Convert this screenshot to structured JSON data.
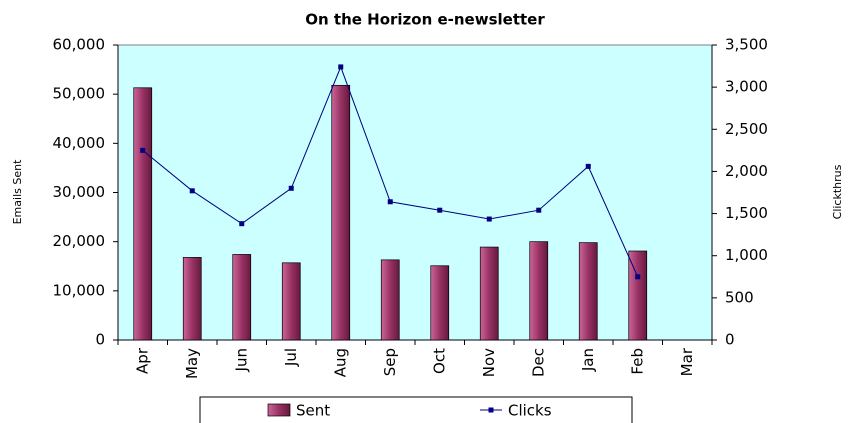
{
  "chart_data": {
    "type": "bar_line",
    "title": "On the Horizon e-newsletter",
    "ylabel": "Emails Sent",
    "y2label": "Clickthrus",
    "categories": [
      "Apr",
      "May",
      "Jun",
      "Jul",
      "Aug",
      "Sep",
      "Oct",
      "Nov",
      "Dec",
      "Jan",
      "Feb",
      "Mar"
    ],
    "series": [
      {
        "name": "Sent",
        "type": "bar",
        "color": "#993366",
        "axis": "y",
        "values": [
          51300,
          16800,
          17400,
          15700,
          51800,
          16300,
          15100,
          18900,
          20000,
          19800,
          18100,
          null
        ]
      },
      {
        "name": "Clicks",
        "type": "line",
        "color": "#000080",
        "axis": "y2",
        "values": [
          2250,
          1770,
          1380,
          1800,
          3240,
          1640,
          1540,
          1435,
          1540,
          2060,
          750,
          null
        ]
      }
    ],
    "ylim": [
      0,
      60000
    ],
    "yticks": [
      0,
      {
        "value": 10000,
        "label": "10,000"
      },
      {
        "value": 20000,
        "label": "20,000"
      },
      {
        "value": 30000,
        "label": "30,000"
      },
      {
        "value": 40000,
        "label": "40,000"
      },
      {
        "value": 50000,
        "label": "50,000"
      },
      {
        "value": 60000,
        "label": "60,000"
      }
    ],
    "y2lim": [
      0,
      3500
    ],
    "y2ticks": [
      0,
      500,
      {
        "value": 1000,
        "label": "1,000"
      },
      {
        "value": 1500,
        "label": "1,500"
      },
      {
        "value": 2000,
        "label": "2,000"
      },
      {
        "value": 2500,
        "label": "2,500"
      },
      {
        "value": 3000,
        "label": "3,000"
      },
      {
        "value": 3500,
        "label": "3,500"
      }
    ],
    "plot_background": "#ccffff",
    "grid": false,
    "legend": "bottom"
  }
}
